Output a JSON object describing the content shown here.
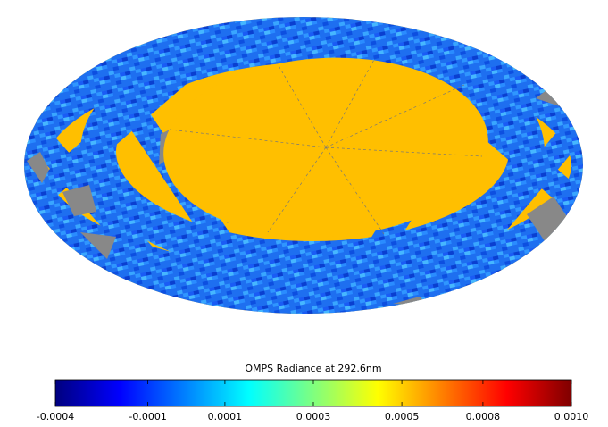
{
  "colorbar": {
    "title": "OMPS Radiance at 292.6nm",
    "colormap": [
      "#00007f",
      "#0000ff",
      "#007fff",
      "#00ffff",
      "#7fff7f",
      "#ffff00",
      "#ff7f00",
      "#ff0000",
      "#7f0000"
    ],
    "lim": [
      -0.0004,
      0.001
    ],
    "ticks": [
      -0.0004,
      {
        "value": -0.000149,
        "label": "-0.0001"
      },
      {
        "value": 6e-05,
        "label": "0.0001"
      },
      0.0003,
      {
        "value": 0.00054,
        "label": "0.0005"
      },
      {
        "value": 0.00076,
        "label": "0.0008"
      },
      {
        "value": 0.001,
        "label": "0.0010"
      }
    ]
  }
}
